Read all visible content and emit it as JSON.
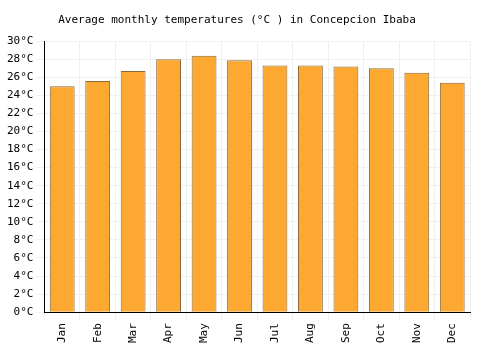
{
  "chart_data": {
    "type": "bar",
    "title": "Average monthly temperatures (°C ) in Concepcion Ibaba",
    "categories": [
      "Jan",
      "Feb",
      "Mar",
      "Apr",
      "May",
      "Jun",
      "Jul",
      "Aug",
      "Sep",
      "Oct",
      "Nov",
      "Dec"
    ],
    "values": [
      25.0,
      25.6,
      26.7,
      28.0,
      28.4,
      27.9,
      27.3,
      27.3,
      27.2,
      27.0,
      26.5,
      25.4
    ],
    "color": "#fca831",
    "ylim": [
      0,
      30
    ],
    "yticks": [
      {
        "value": 0,
        "label": "0°C"
      },
      {
        "value": 2,
        "label": "2°C"
      },
      {
        "value": 4,
        "label": "4°C"
      },
      {
        "value": 6,
        "label": "6°C"
      },
      {
        "value": 8,
        "label": "8°C"
      },
      {
        "value": 10,
        "label": "10°C"
      },
      {
        "value": 12,
        "label": "12°C"
      },
      {
        "value": 14,
        "label": "14°C"
      },
      {
        "value": 16,
        "label": "16°C"
      },
      {
        "value": 18,
        "label": "18°C"
      },
      {
        "value": 20,
        "label": "20°C"
      },
      {
        "value": 22,
        "label": "22°C"
      },
      {
        "value": 24,
        "label": "24°C"
      },
      {
        "value": 26,
        "label": "26°C"
      },
      {
        "value": 28,
        "label": "28°C"
      },
      {
        "value": 30,
        "label": "30°C"
      }
    ],
    "grid": true
  }
}
